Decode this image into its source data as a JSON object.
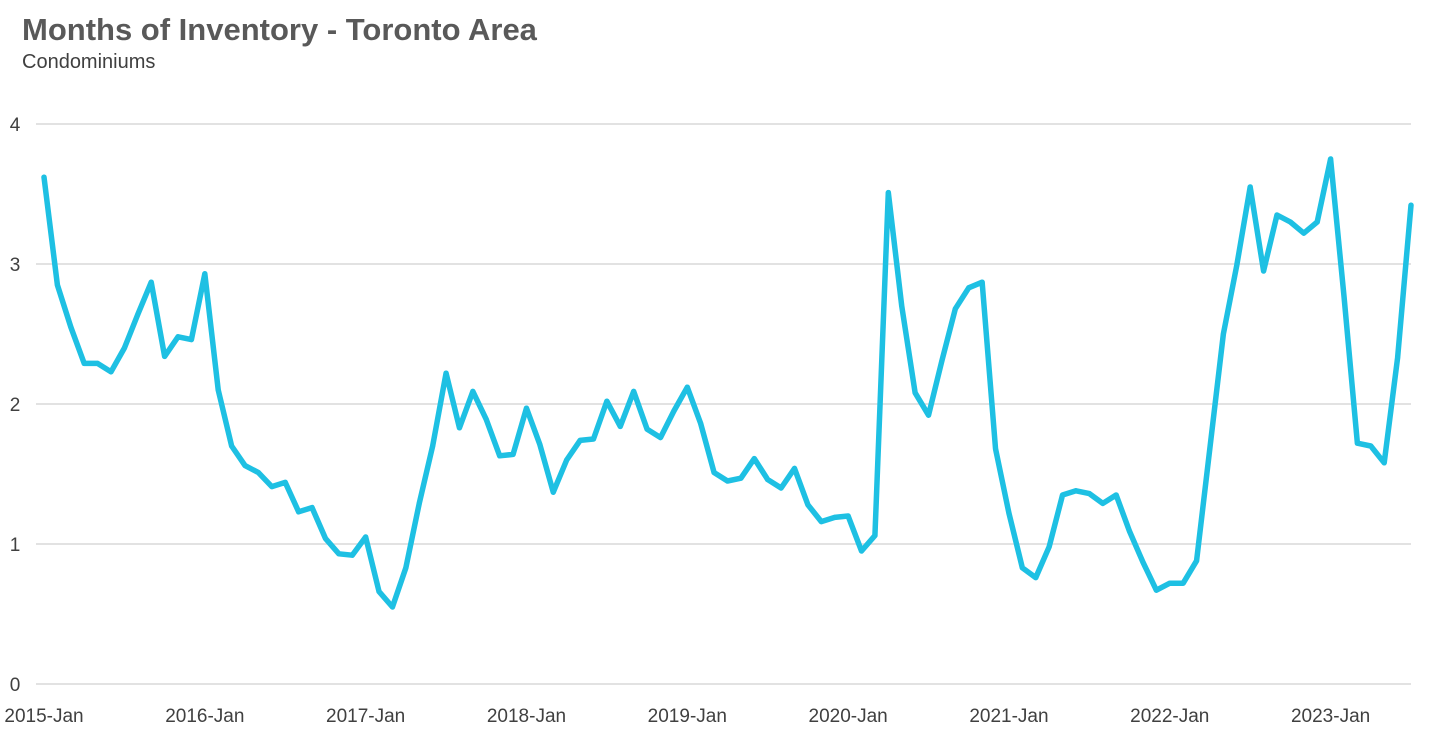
{
  "chart_data": {
    "type": "line",
    "title": "Months of Inventory - Toronto Area",
    "subtitle": "Condominiums",
    "xlabel": "",
    "ylabel": "",
    "ylim": [
      0,
      4
    ],
    "yticks": [
      "0",
      "1",
      "2",
      "3",
      "4"
    ],
    "xticks": [
      "2015-Jan",
      "2016-Jan",
      "2017-Jan",
      "2018-Jan",
      "2019-Jan",
      "2020-Jan",
      "2021-Jan",
      "2022-Jan",
      "2023-Jan"
    ],
    "x_start": "2015-01",
    "x_end": "2023-07",
    "grid": true,
    "legend": "none",
    "line_color": "#1ec0e3",
    "series": [
      {
        "values": [
          3.62,
          2.85,
          2.55,
          2.29,
          2.29,
          2.23,
          2.4,
          2.64,
          2.87,
          2.34,
          2.48,
          2.46,
          2.93,
          2.1,
          1.7,
          1.56,
          1.51,
          1.41,
          1.44,
          1.23,
          1.26,
          1.04,
          0.93,
          0.92,
          1.05,
          0.66,
          0.55,
          0.83,
          1.29,
          1.7,
          2.22,
          1.83,
          2.09,
          1.89,
          1.63,
          1.64,
          1.97,
          1.71,
          1.37,
          1.6,
          1.74,
          1.75,
          2.02,
          1.84,
          2.09,
          1.82,
          1.76,
          1.95,
          2.12,
          1.86,
          1.51,
          1.45,
          1.47,
          1.61,
          1.46,
          1.4,
          1.54,
          1.28,
          1.16,
          1.19,
          1.2,
          0.95,
          1.06,
          3.51,
          2.7,
          2.08,
          1.92,
          2.31,
          2.68,
          2.83,
          2.87,
          1.68,
          1.22,
          0.83,
          0.76,
          0.98,
          1.35,
          1.38,
          1.36,
          1.29,
          1.35,
          1.09,
          0.87,
          0.67,
          0.72,
          0.72,
          0.88,
          1.69,
          2.5,
          2.99,
          3.55,
          2.95,
          3.35,
          3.3,
          3.22,
          3.3,
          3.75,
          2.77,
          1.72,
          1.7,
          1.58,
          2.33,
          3.42
        ]
      }
    ]
  }
}
